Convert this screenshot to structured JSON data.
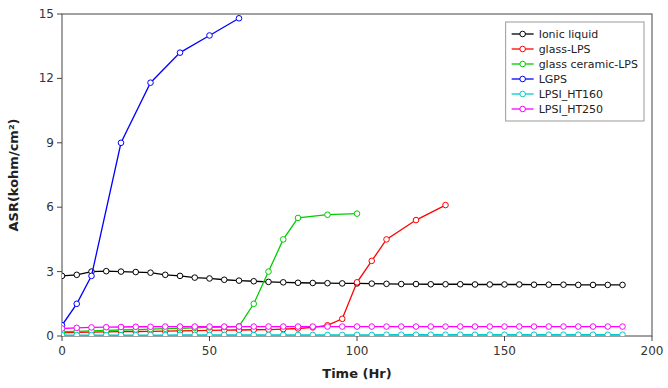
{
  "chart_data": {
    "type": "line",
    "xlabel": "Time (Hr)",
    "ylabel": "ASR(kohm/cm²)",
    "xlim": [
      0,
      200
    ],
    "ylim": [
      0,
      15
    ],
    "xticks": [
      0,
      50,
      100,
      150,
      200
    ],
    "yticks": [
      0,
      3,
      6,
      9,
      12,
      15
    ],
    "grid": false,
    "legend": "upper right",
    "marker": "circle",
    "series": [
      {
        "name": "Ionic liquid",
        "color": "black",
        "x": [
          0,
          5,
          10,
          15,
          20,
          25,
          30,
          35,
          40,
          45,
          50,
          55,
          60,
          65,
          70,
          75,
          80,
          85,
          90,
          95,
          100,
          105,
          110,
          115,
          120,
          125,
          130,
          135,
          140,
          145,
          150,
          155,
          160,
          165,
          170,
          175,
          180,
          185,
          190
        ],
        "values": [
          2.8,
          2.85,
          3.0,
          3.02,
          3.0,
          2.98,
          2.95,
          2.85,
          2.8,
          2.72,
          2.68,
          2.62,
          2.58,
          2.55,
          2.52,
          2.5,
          2.48,
          2.47,
          2.46,
          2.45,
          2.45,
          2.44,
          2.43,
          2.42,
          2.42,
          2.41,
          2.41,
          2.41,
          2.4,
          2.4,
          2.4,
          2.4,
          2.39,
          2.39,
          2.39,
          2.38,
          2.38,
          2.38,
          2.38
        ]
      },
      {
        "name": "glass-LPS",
        "color": "#ff0000",
        "x": [
          0,
          5,
          10,
          15,
          20,
          25,
          30,
          35,
          40,
          45,
          50,
          55,
          60,
          65,
          70,
          75,
          80,
          85,
          90,
          95,
          100,
          105,
          110,
          120,
          130
        ],
        "values": [
          0.15,
          0.17,
          0.18,
          0.19,
          0.2,
          0.21,
          0.22,
          0.23,
          0.24,
          0.25,
          0.26,
          0.27,
          0.28,
          0.29,
          0.3,
          0.32,
          0.35,
          0.4,
          0.5,
          0.8,
          2.5,
          3.5,
          4.5,
          5.4,
          6.1
        ]
      },
      {
        "name": "glass ceramic-LPS",
        "color": "#00cc00",
        "x": [
          0,
          5,
          10,
          15,
          20,
          25,
          30,
          35,
          40,
          45,
          50,
          55,
          60,
          65,
          70,
          75,
          80,
          90,
          100
        ],
        "values": [
          0.2,
          0.22,
          0.24,
          0.26,
          0.28,
          0.3,
          0.32,
          0.34,
          0.36,
          0.38,
          0.4,
          0.42,
          0.45,
          1.5,
          3.0,
          4.5,
          5.5,
          5.65,
          5.7
        ]
      },
      {
        "name": "LGPS",
        "color": "#0000ff",
        "x": [
          0,
          5,
          10,
          20,
          30,
          40,
          50,
          60
        ],
        "values": [
          0.5,
          1.5,
          2.8,
          9.0,
          11.8,
          13.2,
          14.0,
          14.8
        ]
      },
      {
        "name": "LPSI_HT160",
        "color": "#00cccc",
        "x": [
          0,
          5,
          10,
          15,
          20,
          25,
          30,
          35,
          40,
          45,
          50,
          55,
          60,
          65,
          70,
          75,
          80,
          85,
          90,
          95,
          100,
          105,
          110,
          115,
          120,
          125,
          130,
          135,
          140,
          145,
          150,
          155,
          160,
          165,
          170,
          175,
          180,
          185,
          190
        ],
        "values": [
          0.04,
          0.04,
          0.04,
          0.04,
          0.04,
          0.04,
          0.04,
          0.04,
          0.05,
          0.05,
          0.05,
          0.05,
          0.05,
          0.05,
          0.05,
          0.05,
          0.05,
          0.05,
          0.05,
          0.05,
          0.05,
          0.05,
          0.06,
          0.06,
          0.06,
          0.06,
          0.06,
          0.06,
          0.06,
          0.06,
          0.06,
          0.06,
          0.06,
          0.06,
          0.06,
          0.06,
          0.06,
          0.06,
          0.06
        ]
      },
      {
        "name": "LPSI_HT250",
        "color": "#ff00ff",
        "x": [
          0,
          5,
          10,
          15,
          20,
          25,
          30,
          35,
          40,
          45,
          50,
          55,
          60,
          65,
          70,
          75,
          80,
          85,
          90,
          95,
          100,
          105,
          110,
          115,
          120,
          125,
          130,
          135,
          140,
          145,
          150,
          155,
          160,
          165,
          170,
          175,
          180,
          185,
          190
        ],
        "values": [
          0.35,
          0.38,
          0.4,
          0.41,
          0.42,
          0.43,
          0.43,
          0.44,
          0.44,
          0.44,
          0.44,
          0.44,
          0.44,
          0.44,
          0.44,
          0.44,
          0.44,
          0.44,
          0.44,
          0.44,
          0.44,
          0.44,
          0.44,
          0.44,
          0.44,
          0.44,
          0.44,
          0.44,
          0.44,
          0.44,
          0.44,
          0.44,
          0.44,
          0.44,
          0.44,
          0.44,
          0.44,
          0.44,
          0.44
        ]
      }
    ]
  }
}
